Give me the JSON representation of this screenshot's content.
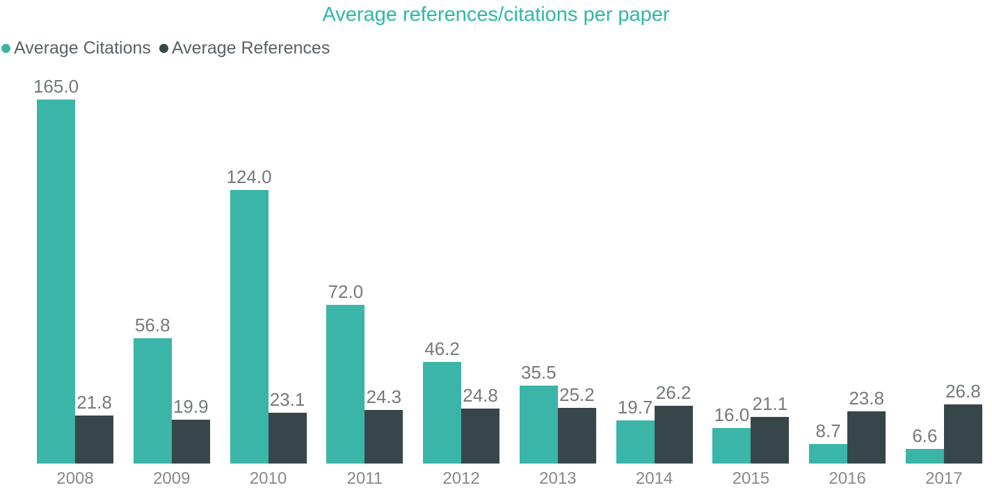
{
  "chart_data": {
    "type": "bar",
    "title": "Average references/citations per paper",
    "title_color": "#2eb7a9",
    "categories": [
      "2008",
      "2009",
      "2010",
      "2011",
      "2012",
      "2013",
      "2014",
      "2015",
      "2016",
      "2017"
    ],
    "series": [
      {
        "name": "Average Citations",
        "color": "#3ab5a8",
        "values": [
          165.0,
          56.8,
          124.0,
          72.0,
          46.2,
          35.5,
          19.7,
          16.0,
          8.7,
          6.6
        ]
      },
      {
        "name": "Average References",
        "color": "#374649",
        "values": [
          21.8,
          19.9,
          23.1,
          24.3,
          24.8,
          25.2,
          26.2,
          21.1,
          23.8,
          26.8
        ]
      }
    ],
    "xlabel": "",
    "ylabel": "",
    "ylim": [
      0,
      165
    ],
    "grid": false,
    "legend_position": "top-left",
    "value_labels": "one_decimal",
    "value_label_color": "#75797c",
    "axis_label_color": "#84898c"
  }
}
